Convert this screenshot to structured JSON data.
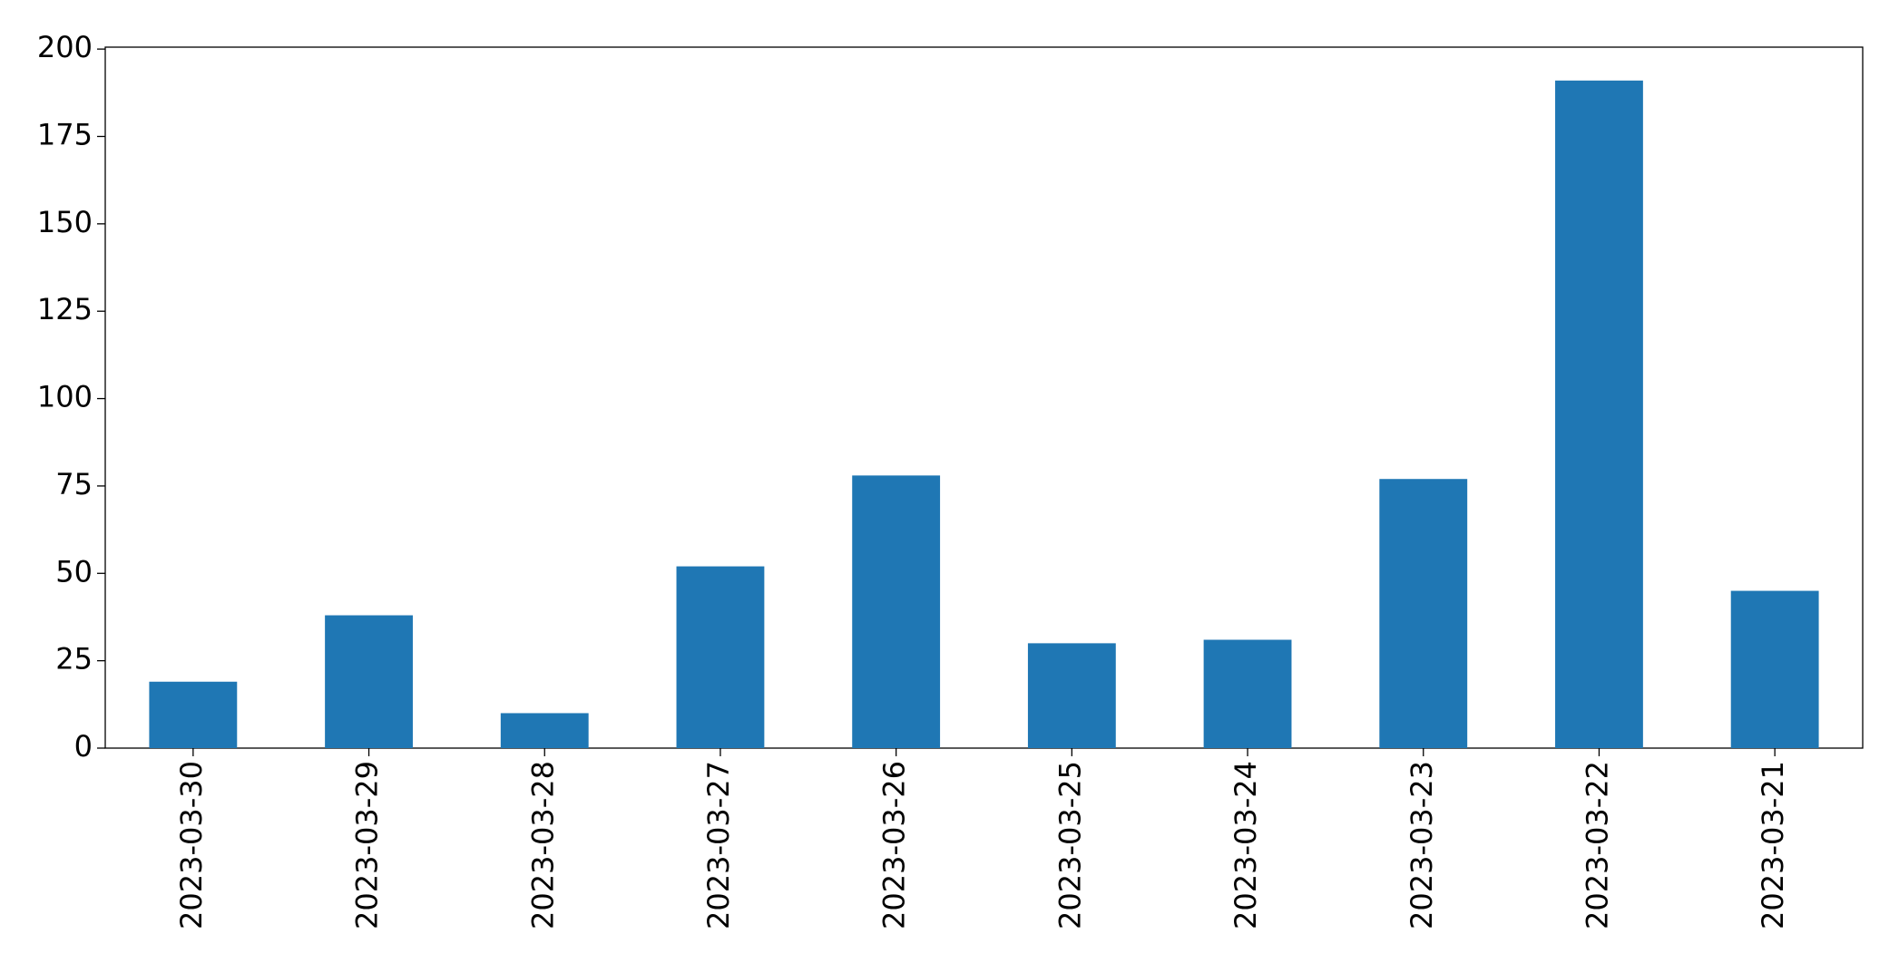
{
  "chart_data": {
    "type": "bar",
    "categories": [
      "2023-03-30",
      "2023-03-29",
      "2023-03-28",
      "2023-03-27",
      "2023-03-26",
      "2023-03-25",
      "2023-03-24",
      "2023-03-23",
      "2023-03-22",
      "2023-03-21"
    ],
    "values": [
      19,
      38,
      10,
      52,
      78,
      30,
      31,
      77,
      191,
      45
    ],
    "color": "#1f77b4",
    "ylim": [
      0,
      200.55
    ],
    "yticks": [
      0,
      25,
      50,
      75,
      100,
      125,
      150,
      175,
      200
    ],
    "grid": false
  }
}
